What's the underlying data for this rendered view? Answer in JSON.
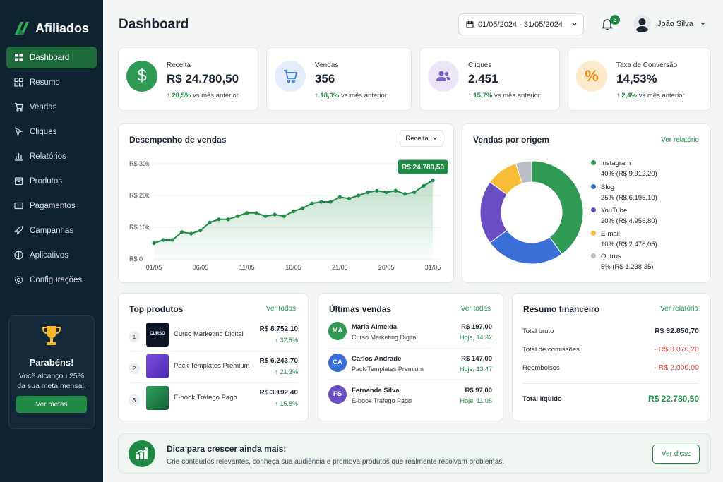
{
  "brand": {
    "name": "Afiliados",
    "accent": "#1f8a45",
    "sidebar_bg": "#0e2330"
  },
  "sidebar": {
    "items": [
      {
        "label": "Dashboard",
        "icon": "grid-icon",
        "active": true
      },
      {
        "label": "Resumo",
        "icon": "squares-icon"
      },
      {
        "label": "Vendas",
        "icon": "cart-icon"
      },
      {
        "label": "Cliques",
        "icon": "cursor-icon"
      },
      {
        "label": "Relatórios",
        "icon": "bar-chart-icon"
      },
      {
        "label": "Produtos",
        "icon": "box-icon"
      },
      {
        "label": "Pagamentos",
        "icon": "credit-card-icon"
      },
      {
        "label": "Campanhas",
        "icon": "rocket-icon"
      },
      {
        "label": "Aplicativos",
        "icon": "apps-icon"
      },
      {
        "label": "Configurações",
        "icon": "gear-icon"
      }
    ],
    "promo": {
      "title": "Parabéns!",
      "text": "Você alcançou 25% da sua meta mensal.",
      "button": "Ver metas"
    }
  },
  "header": {
    "title": "Dashboard",
    "date_range": "01/05/2024 - 31/05/2024",
    "notifications": "3",
    "user_name": "João Silva"
  },
  "kpis": [
    {
      "label": "Receita",
      "value": "R$ 24.780,50",
      "delta": "28,5%",
      "delta_text": "vs mês anterior",
      "icon": "dollar-icon",
      "color": "#2f9a54"
    },
    {
      "label": "Vendas",
      "value": "356",
      "delta": "18,3%",
      "delta_text": "vs mês anterior",
      "icon": "cart-icon",
      "color": "#3a7bd5"
    },
    {
      "label": "Cliques",
      "value": "2.451",
      "delta": "15,7%",
      "delta_text": "vs mês anterior",
      "icon": "users-icon",
      "color": "#7a5cc9"
    },
    {
      "label": "Taxa de Conversão",
      "value": "14,53%",
      "delta": "2,4%",
      "delta_text": "vs mês anterior",
      "icon": "percent-icon",
      "color": "#f2a52b"
    }
  ],
  "sales_chart": {
    "title": "Desempenho de vendas",
    "dropdown": "Receita",
    "badge": "R$ 24.780,50"
  },
  "chart_data": [
    {
      "type": "area",
      "x": [
        "01/05",
        "02/05",
        "03/05",
        "04/05",
        "05/05",
        "06/05",
        "07/05",
        "08/05",
        "09/05",
        "10/05",
        "11/05",
        "12/05",
        "13/05",
        "14/05",
        "15/05",
        "16/05",
        "17/05",
        "18/05",
        "19/05",
        "20/05",
        "21/05",
        "22/05",
        "23/05",
        "24/05",
        "25/05",
        "26/05",
        "27/05",
        "28/05",
        "29/05",
        "30/05",
        "31/05"
      ],
      "values": [
        5000,
        6000,
        6000,
        8500,
        8000,
        9000,
        11500,
        12500,
        12500,
        13500,
        14500,
        14500,
        13500,
        14000,
        13500,
        15000,
        16000,
        17500,
        18000,
        18000,
        19500,
        19000,
        20000,
        21000,
        21500,
        21000,
        21500,
        20500,
        21000,
        23000,
        24780.5
      ],
      "xticks": [
        "01/05",
        "06/05",
        "11/05",
        "16/05",
        "21/05",
        "26/05",
        "31/05"
      ],
      "yticks": [
        "R$ 0",
        "R$ 10k",
        "R$ 20k",
        "R$ 30k"
      ],
      "ylim": [
        0,
        30000
      ],
      "color": "#1f8a45"
    },
    {
      "type": "pie",
      "title": "Vendas por origem",
      "slices": [
        {
          "name": "Instagram",
          "percent": 40,
          "amount": "R$ 9.912,20",
          "color": "#2f9a54"
        },
        {
          "name": "Blog",
          "percent": 25,
          "amount": "R$ 6.195,10",
          "color": "#3a6fd8"
        },
        {
          "name": "YouTube",
          "percent": 20,
          "amount": "R$ 4.956,80",
          "color": "#6a4fc4"
        },
        {
          "name": "E-mail",
          "percent": 10,
          "amount": "R$ 2.478,05",
          "color": "#f7bd36"
        },
        {
          "name": "Outros",
          "percent": 5,
          "amount": "R$ 1.238,35",
          "color": "#b9bec4"
        }
      ]
    }
  ],
  "origin_legend": {
    "link": "Ver relatório",
    "lines": [
      "40% (R$ 9.912,20)",
      "25% (R$ 6.195,10)",
      "20% (R$ 4.956,80)",
      "10% (R$ 2.478,05)",
      "5% (R$ 1.238,35)"
    ]
  },
  "top_products": {
    "title": "Top produtos",
    "link": "Ver todos",
    "items": [
      {
        "rank": "1",
        "name": "Curso Marketing Digital",
        "value": "R$ 8.752,10",
        "delta": "32,5%",
        "thumb_text": "CURSO"
      },
      {
        "rank": "2",
        "name": "Pack Templates Premium",
        "value": "R$ 6.243,70",
        "delta": "21,3%"
      },
      {
        "rank": "3",
        "name": "E-book Tráfego Pago",
        "value": "R$ 3.192,40",
        "delta": "15,8%"
      }
    ]
  },
  "recent_sales": {
    "title": "Últimas vendas",
    "link": "Ver todas",
    "items": [
      {
        "initials": "MA",
        "name": "Maria Almeida",
        "product": "Curso Marketing Digital",
        "value": "R$ 197,00",
        "time": "Hoje, 14:32",
        "color": "#2f9a54"
      },
      {
        "initials": "CA",
        "name": "Carlos Andrade",
        "product": "Pack Templates Premium",
        "value": "R$ 147,00",
        "time": "Hoje, 13:47",
        "color": "#3a6fd8"
      },
      {
        "initials": "FS",
        "name": "Fernanda Silva",
        "product": "E-book Tráfego Pago",
        "value": "R$ 97,00",
        "time": "Hoje, 11:05",
        "color": "#6a4fc4"
      }
    ]
  },
  "financial": {
    "title": "Resumo financeiro",
    "link": "Ver relatório",
    "gross_label": "Total bruto",
    "gross": "R$ 32.850,70",
    "commission_label": "Total de comissões",
    "commission": "- R$ 8.070,20",
    "refunds_label": "Reembolsos",
    "refunds": "- R$ 2.000,00",
    "net_label": "Total líquido",
    "net": "R$ 22.780,50"
  },
  "tip": {
    "title": "Dica para crescer ainda mais:",
    "text": "Crie conteúdos relevantes, conheça sua audiência e promova produtos que realmente resolvam problemas.",
    "button": "Ver dicas"
  }
}
